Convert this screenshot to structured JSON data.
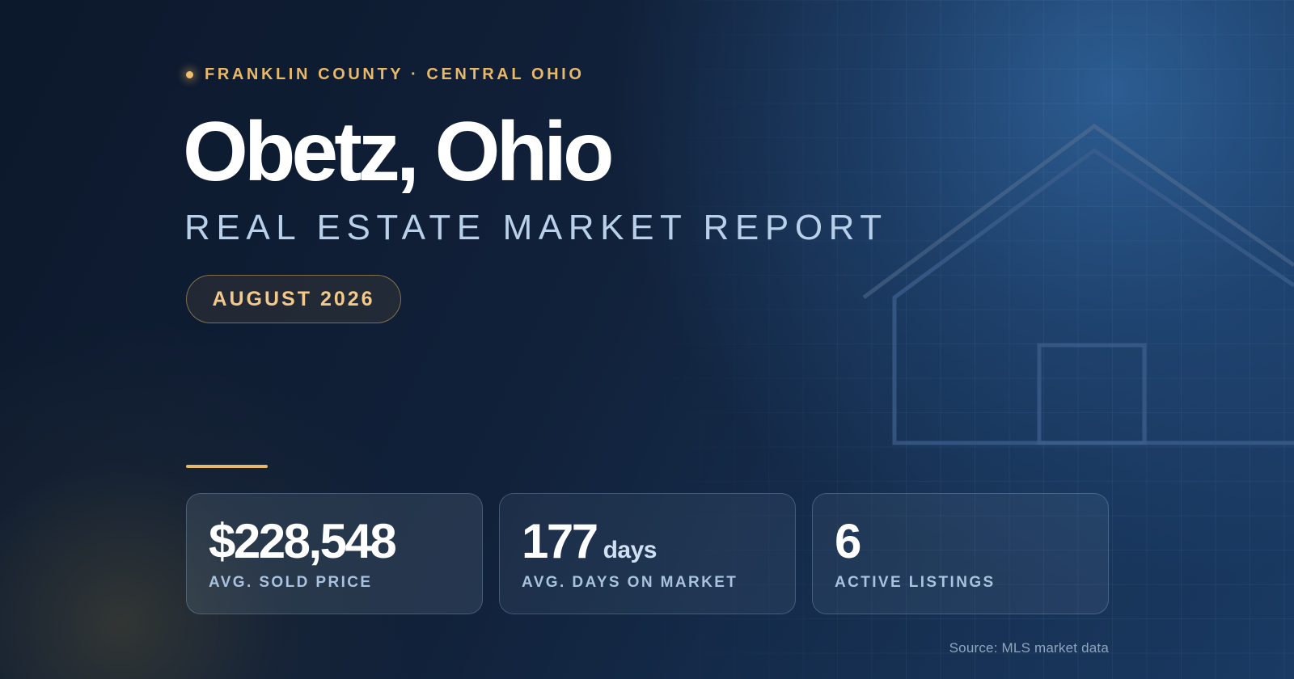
{
  "header": {
    "eyebrow": "FRANKLIN COUNTY · CENTRAL OHIO",
    "title": "Obetz, Ohio",
    "subtitle": "REAL ESTATE MARKET REPORT",
    "period": "AUGUST 2026"
  },
  "stats": [
    {
      "value": "$228,548",
      "unit": "",
      "label": "AVG. SOLD PRICE"
    },
    {
      "value": "177",
      "unit": "days",
      "label": "AVG. DAYS ON MARKET"
    },
    {
      "value": "6",
      "unit": "",
      "label": "ACTIVE LISTINGS"
    }
  ],
  "footer": {
    "source": "Source: MLS market data"
  },
  "icons": {
    "eyebrow_marker": "dot-icon",
    "background_illustration": "house-outline-icon"
  },
  "colors": {
    "accent_gold": "#e9b96a",
    "title_white": "#ffffff",
    "subtitle_blue": "#b9d0ea",
    "background_navy": "#0f1d33"
  }
}
